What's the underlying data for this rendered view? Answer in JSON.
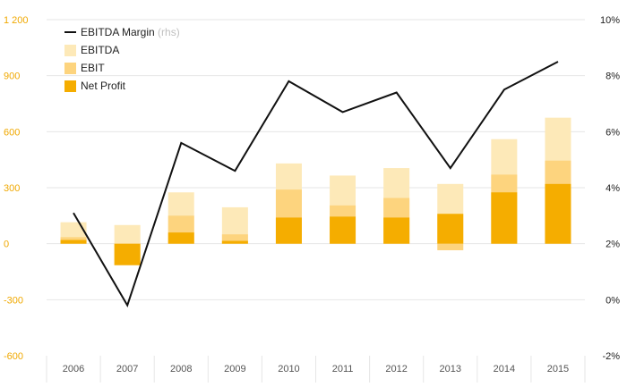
{
  "chart_data": {
    "type": "bar",
    "categories": [
      "2006",
      "2007",
      "2008",
      "2009",
      "2010",
      "2011",
      "2012",
      "2013",
      "2014",
      "2015"
    ],
    "series": [
      {
        "name": "EBITDA",
        "kind": "bar",
        "axis": "left",
        "color": "#fde9b8",
        "values": [
          115,
          100,
          275,
          195,
          430,
          365,
          405,
          320,
          560,
          675
        ]
      },
      {
        "name": "EBIT",
        "kind": "bar",
        "axis": "left",
        "color": "#fdd47e",
        "values": [
          35,
          -115,
          150,
          50,
          290,
          205,
          245,
          -35,
          370,
          445
        ]
      },
      {
        "name": "Net Profit",
        "kind": "bar",
        "axis": "left",
        "color": "#f5ad00",
        "values": [
          20,
          -115,
          60,
          15,
          140,
          145,
          140,
          160,
          275,
          320
        ]
      },
      {
        "name": "EBITDA Margin",
        "name_note": "(rhs)",
        "kind": "line",
        "axis": "right",
        "color": "#111111",
        "values": [
          3.1,
          -0.2,
          5.6,
          4.6,
          7.8,
          6.7,
          7.4,
          4.7,
          7.5,
          8.5
        ]
      }
    ],
    "left_axis": {
      "ylim": [
        -600,
        1200
      ],
      "ticks": [
        -600,
        -300,
        0,
        300,
        600,
        900,
        1200
      ],
      "tick_labels": [
        "-600",
        "-300",
        "0",
        "300",
        "600",
        "900",
        "1 200"
      ]
    },
    "right_axis": {
      "ylim": [
        -2,
        10
      ],
      "ticks": [
        -2,
        0,
        2,
        4,
        6,
        8,
        10
      ],
      "tick_labels": [
        "-2%",
        "0%",
        "2%",
        "4%",
        "6%",
        "8%",
        "10%"
      ]
    },
    "legend_placement": "top-left",
    "grid": true,
    "colors": {
      "left_ticks": "#f0a800",
      "right_ticks": "#222222",
      "grid": "#e6e6e6"
    }
  }
}
